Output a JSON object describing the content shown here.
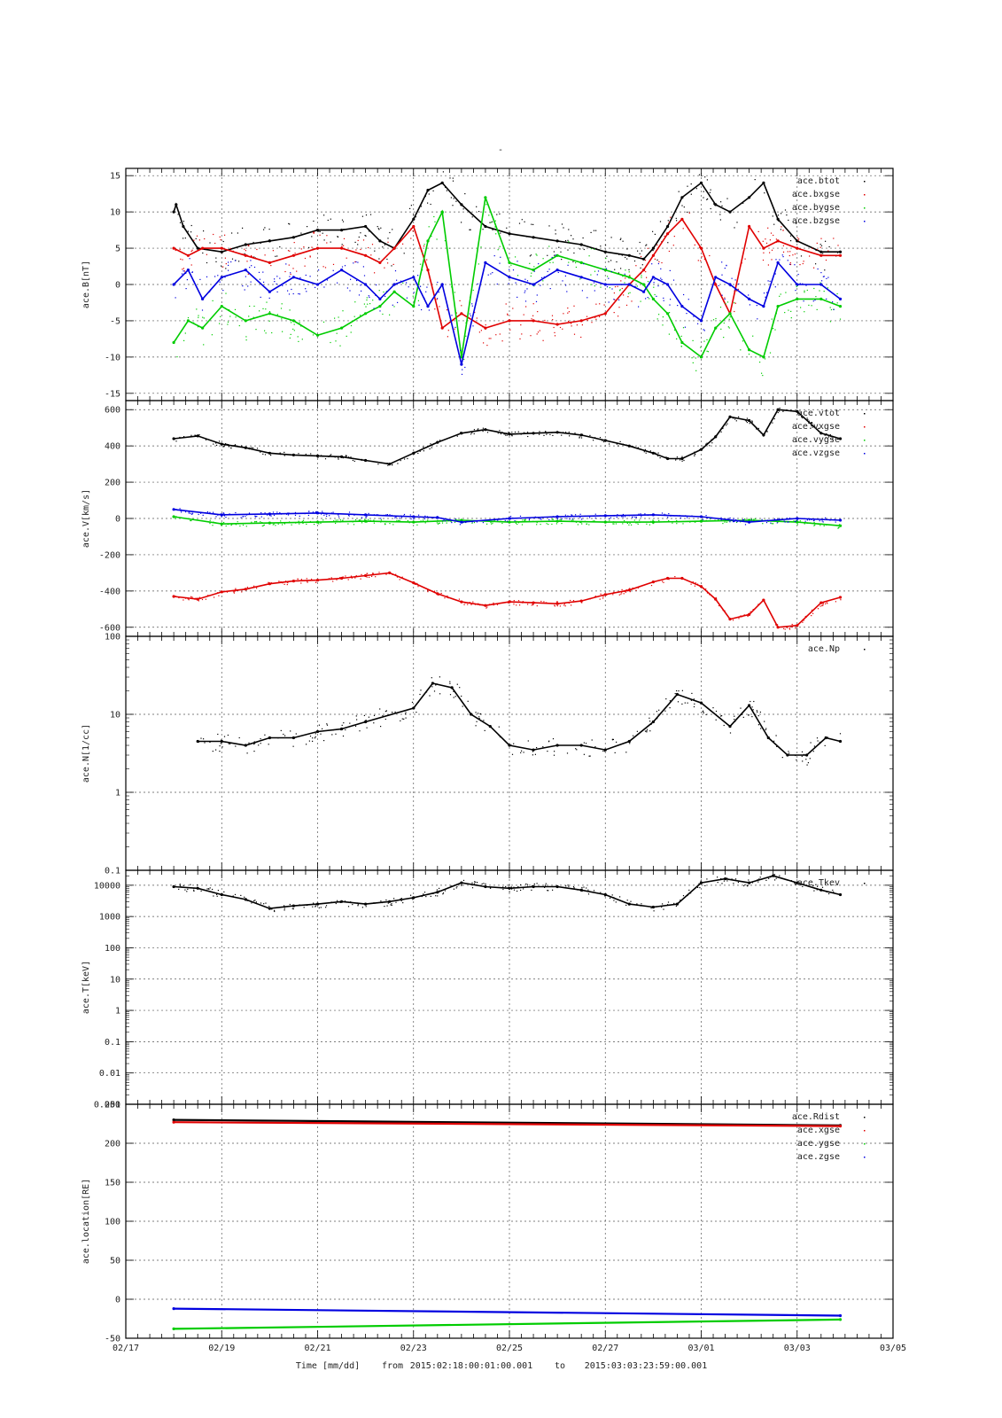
{
  "title": "-",
  "footer": {
    "xlabel": "Time [mm/dd]",
    "from_label": "from",
    "from_value": "2015:02:18:00:01:00.001",
    "to_label": "to",
    "to_value": "2015:03:03:23:59:00.001"
  },
  "x_axis": {
    "range_days": [
      0,
      16
    ],
    "tick_days": [
      0,
      2,
      4,
      6,
      8,
      10,
      12,
      14,
      16
    ],
    "tick_labels": [
      "02/17",
      "02/19",
      "02/21",
      "02/23",
      "02/25",
      "02/27",
      "03/01",
      "03/03",
      "03/05"
    ]
  },
  "colors": {
    "black": "#000000",
    "red": "#e00000",
    "green": "#00cc00",
    "blue": "#0000e0"
  },
  "chart_data": [
    {
      "type": "scatter",
      "ylabel": "ace.B[nT]",
      "ylim": [
        -16,
        16
      ],
      "yscale": "linear",
      "yticks": [
        -15,
        -10,
        -5,
        0,
        5,
        10,
        15
      ],
      "ytick_labels": [
        "-15",
        "-10",
        "-5",
        "0",
        "5",
        "10",
        "15"
      ],
      "grid": true,
      "legend_position": "top-right",
      "series": [
        {
          "name": "ace.btot",
          "color": "#000000",
          "x": [
            1.0,
            1.05,
            1.2,
            1.5,
            2.0,
            2.5,
            3.0,
            3.5,
            4.0,
            4.5,
            5.0,
            5.3,
            5.6,
            6.0,
            6.3,
            6.6,
            7.0,
            7.5,
            8.0,
            8.5,
            9.0,
            9.5,
            10.0,
            10.5,
            10.8,
            11.0,
            11.3,
            11.6,
            12.0,
            12.3,
            12.6,
            13.0,
            13.3,
            13.6,
            14.0,
            14.5,
            14.9
          ],
          "values": [
            10,
            11,
            8,
            5,
            4.5,
            5.5,
            6,
            6.5,
            7.5,
            7.5,
            8,
            6,
            5,
            9,
            13,
            14,
            11,
            8,
            7,
            6.5,
            6,
            5.5,
            4.5,
            4,
            3.5,
            5,
            8,
            12,
            14,
            11,
            10,
            12,
            14,
            9,
            6,
            4.5,
            4.5
          ]
        },
        {
          "name": "ace.bxgse",
          "color": "#e00000",
          "x": [
            1.0,
            1.3,
            1.6,
            2.0,
            2.5,
            3.0,
            3.5,
            4.0,
            4.5,
            5.0,
            5.3,
            5.6,
            6.0,
            6.3,
            6.6,
            7.0,
            7.5,
            8.0,
            8.5,
            9.0,
            9.5,
            10.0,
            10.5,
            10.8,
            11.0,
            11.3,
            11.6,
            12.0,
            12.3,
            12.6,
            13.0,
            13.3,
            13.6,
            14.0,
            14.5,
            14.9
          ],
          "values": [
            5,
            4,
            5,
            5,
            4,
            3,
            4,
            5,
            5,
            4,
            3,
            5,
            8,
            2,
            -6,
            -4,
            -6,
            -5,
            -5,
            -5.5,
            -5,
            -4,
            0,
            2,
            4,
            7,
            9,
            5,
            0,
            -4,
            8,
            5,
            6,
            5,
            4,
            4
          ]
        },
        {
          "name": "ace.bygse",
          "color": "#00cc00",
          "x": [
            1.0,
            1.3,
            1.6,
            2.0,
            2.5,
            3.0,
            3.5,
            4.0,
            4.5,
            5.0,
            5.3,
            5.6,
            6.0,
            6.3,
            6.6,
            7.0,
            7.5,
            8.0,
            8.5,
            9.0,
            9.5,
            10.0,
            10.5,
            10.8,
            11.0,
            11.3,
            11.6,
            12.0,
            12.3,
            12.6,
            13.0,
            13.3,
            13.6,
            14.0,
            14.5,
            14.9
          ],
          "values": [
            -8,
            -5,
            -6,
            -3,
            -5,
            -4,
            -5,
            -7,
            -6,
            -4,
            -3,
            -1,
            -3,
            6,
            10,
            -10,
            12,
            3,
            2,
            4,
            3,
            2,
            1,
            0,
            -2,
            -4,
            -8,
            -10,
            -6,
            -4,
            -9,
            -10,
            -3,
            -2,
            -2,
            -3
          ]
        },
        {
          "name": "ace.bzgse",
          "color": "#0000e0",
          "x": [
            1.0,
            1.3,
            1.6,
            2.0,
            2.5,
            3.0,
            3.5,
            4.0,
            4.5,
            5.0,
            5.3,
            5.6,
            6.0,
            6.3,
            6.6,
            7.0,
            7.5,
            8.0,
            8.5,
            9.0,
            9.5,
            10.0,
            10.5,
            10.8,
            11.0,
            11.3,
            11.6,
            12.0,
            12.3,
            12.6,
            13.0,
            13.3,
            13.6,
            14.0,
            14.5,
            14.9
          ],
          "values": [
            0,
            2,
            -2,
            1,
            2,
            -1,
            1,
            0,
            2,
            0,
            -2,
            0,
            1,
            -3,
            0,
            -11,
            3,
            1,
            0,
            2,
            1,
            0,
            0,
            -1,
            1,
            0,
            -3,
            -5,
            1,
            0,
            -2,
            -3,
            3,
            0,
            0,
            -2
          ]
        }
      ]
    },
    {
      "type": "scatter",
      "ylabel": "ace.V[km/s]",
      "ylim": [
        -650,
        650
      ],
      "yscale": "linear",
      "yticks": [
        -600,
        -400,
        -200,
        0,
        200,
        400,
        600
      ],
      "ytick_labels": [
        "-600",
        "-400",
        "-200",
        "0",
        "200",
        "400",
        "600"
      ],
      "grid": true,
      "legend_position": "top-right",
      "series": [
        {
          "name": "ace.vtot",
          "color": "#000000",
          "x": [
            1.0,
            1.5,
            2.0,
            2.5,
            3.0,
            3.5,
            4.0,
            4.5,
            5.0,
            5.5,
            6.0,
            6.5,
            7.0,
            7.5,
            8.0,
            8.5,
            9.0,
            9.5,
            10.0,
            10.5,
            11.0,
            11.3,
            11.6,
            12.0,
            12.3,
            12.6,
            13.0,
            13.3,
            13.6,
            14.0,
            14.5,
            14.9
          ],
          "values": [
            440,
            455,
            410,
            390,
            360,
            350,
            345,
            340,
            320,
            300,
            360,
            420,
            470,
            490,
            465,
            470,
            475,
            460,
            430,
            400,
            360,
            330,
            330,
            380,
            450,
            560,
            540,
            460,
            600,
            590,
            470,
            440
          ]
        },
        {
          "name": "ace.vxgse",
          "color": "#e00000",
          "x": [
            1.0,
            1.5,
            2.0,
            2.5,
            3.0,
            3.5,
            4.0,
            4.5,
            5.0,
            5.5,
            6.0,
            6.5,
            7.0,
            7.5,
            8.0,
            8.5,
            9.0,
            9.5,
            10.0,
            10.5,
            11.0,
            11.3,
            11.6,
            12.0,
            12.3,
            12.6,
            13.0,
            13.3,
            13.6,
            14.0,
            14.5,
            14.9
          ],
          "values": [
            -430,
            -445,
            -405,
            -390,
            -360,
            -345,
            -340,
            -330,
            -315,
            -300,
            -355,
            -415,
            -460,
            -480,
            -460,
            -465,
            -470,
            -455,
            -420,
            -395,
            -350,
            -330,
            -330,
            -375,
            -445,
            -555,
            -530,
            -450,
            -600,
            -590,
            -465,
            -435
          ]
        },
        {
          "name": "ace.vygse",
          "color": "#00cc00",
          "x": [
            1.0,
            2.0,
            3.0,
            4.0,
            5.0,
            6.0,
            7.0,
            8.0,
            9.0,
            10.0,
            11.0,
            12.0,
            13.0,
            14.0,
            14.9
          ],
          "values": [
            10,
            -30,
            -25,
            -20,
            -15,
            -20,
            -10,
            -20,
            -15,
            -20,
            -20,
            -15,
            -10,
            -20,
            -40
          ]
        },
        {
          "name": "ace.vzgse",
          "color": "#0000e0",
          "x": [
            1.0,
            2.0,
            3.0,
            4.0,
            5.0,
            6.0,
            6.5,
            7.0,
            8.0,
            9.0,
            10.0,
            11.0,
            12.0,
            13.0,
            14.0,
            14.9
          ],
          "values": [
            50,
            20,
            25,
            30,
            20,
            10,
            5,
            -20,
            0,
            10,
            15,
            20,
            10,
            -20,
            0,
            -10
          ]
        }
      ]
    },
    {
      "type": "scatter",
      "ylabel": "ace.N[1/cc]",
      "ylim": [
        0.1,
        100
      ],
      "yscale": "log",
      "yticks": [
        0.1,
        1,
        10,
        100
      ],
      "ytick_labels": [
        "0.1",
        "1",
        "10",
        "100"
      ],
      "grid": true,
      "legend_position": "top-right",
      "series": [
        {
          "name": "ace.Np",
          "color": "#000000",
          "x": [
            1.5,
            2.0,
            2.5,
            3.0,
            3.5,
            4.0,
            4.5,
            5.0,
            6.0,
            6.4,
            6.8,
            7.2,
            7.6,
            8.0,
            8.5,
            9.0,
            9.5,
            10.0,
            10.5,
            11.0,
            11.5,
            12.0,
            12.6,
            13.0,
            13.4,
            13.8,
            14.2,
            14.6,
            14.9
          ],
          "values": [
            4.5,
            4.5,
            4,
            5,
            5,
            6,
            6.5,
            8,
            12,
            25,
            22,
            10,
            7,
            4,
            3.5,
            4,
            4,
            3.5,
            4.5,
            8,
            18,
            14,
            7,
            13,
            5,
            3,
            3,
            5,
            4.5
          ]
        }
      ]
    },
    {
      "type": "scatter",
      "ylabel": "ace.T[keV]",
      "ylim": [
        0.001,
        30000
      ],
      "yscale": "log",
      "yticks": [
        0.001,
        0.01,
        0.1,
        1,
        10,
        100,
        1000,
        10000
      ],
      "ytick_labels": [
        "0.001",
        "0.01",
        "0.1",
        "1",
        "10",
        "100",
        "1000",
        "10000"
      ],
      "grid": true,
      "legend_position": "top-right",
      "series": [
        {
          "name": "ace.Tkev",
          "color": "#000000",
          "x": [
            1.0,
            1.5,
            2.0,
            2.5,
            3.0,
            3.5,
            4.0,
            4.5,
            5.0,
            5.5,
            6.0,
            6.5,
            7.0,
            7.5,
            8.0,
            8.5,
            9.0,
            9.5,
            10.0,
            10.5,
            11.0,
            11.5,
            12.0,
            12.5,
            13.0,
            13.5,
            14.0,
            14.5,
            14.9
          ],
          "values": [
            9000,
            8000,
            5000,
            3500,
            1800,
            2200,
            2500,
            3000,
            2500,
            3000,
            4000,
            6000,
            12000,
            9000,
            8000,
            9000,
            9000,
            7000,
            5000,
            2500,
            2000,
            2500,
            12000,
            16000,
            12000,
            20000,
            12000,
            7000,
            5000
          ]
        }
      ]
    },
    {
      "type": "scatter",
      "ylabel": "ace.location[RE]",
      "ylim": [
        -50,
        250
      ],
      "yscale": "linear",
      "yticks": [
        -50,
        0,
        50,
        100,
        150,
        200,
        250
      ],
      "ytick_labels": [
        "-50",
        "0",
        "50",
        "100",
        "150",
        "200",
        "250"
      ],
      "grid": true,
      "legend_position": "top-right",
      "series": [
        {
          "name": "ace.Rdist",
          "color": "#000000",
          "x": [
            1.0,
            14.9
          ],
          "values": [
            230,
            223
          ]
        },
        {
          "name": "ace.xgse",
          "color": "#e00000",
          "x": [
            1.0,
            14.9
          ],
          "values": [
            227,
            222
          ]
        },
        {
          "name": "ace.ygse",
          "color": "#00cc00",
          "x": [
            1.0,
            14.9
          ],
          "values": [
            -38,
            -26
          ]
        },
        {
          "name": "ace.zgse",
          "color": "#0000e0",
          "x": [
            1.0,
            14.9
          ],
          "values": [
            -12,
            -21
          ]
        }
      ]
    }
  ]
}
